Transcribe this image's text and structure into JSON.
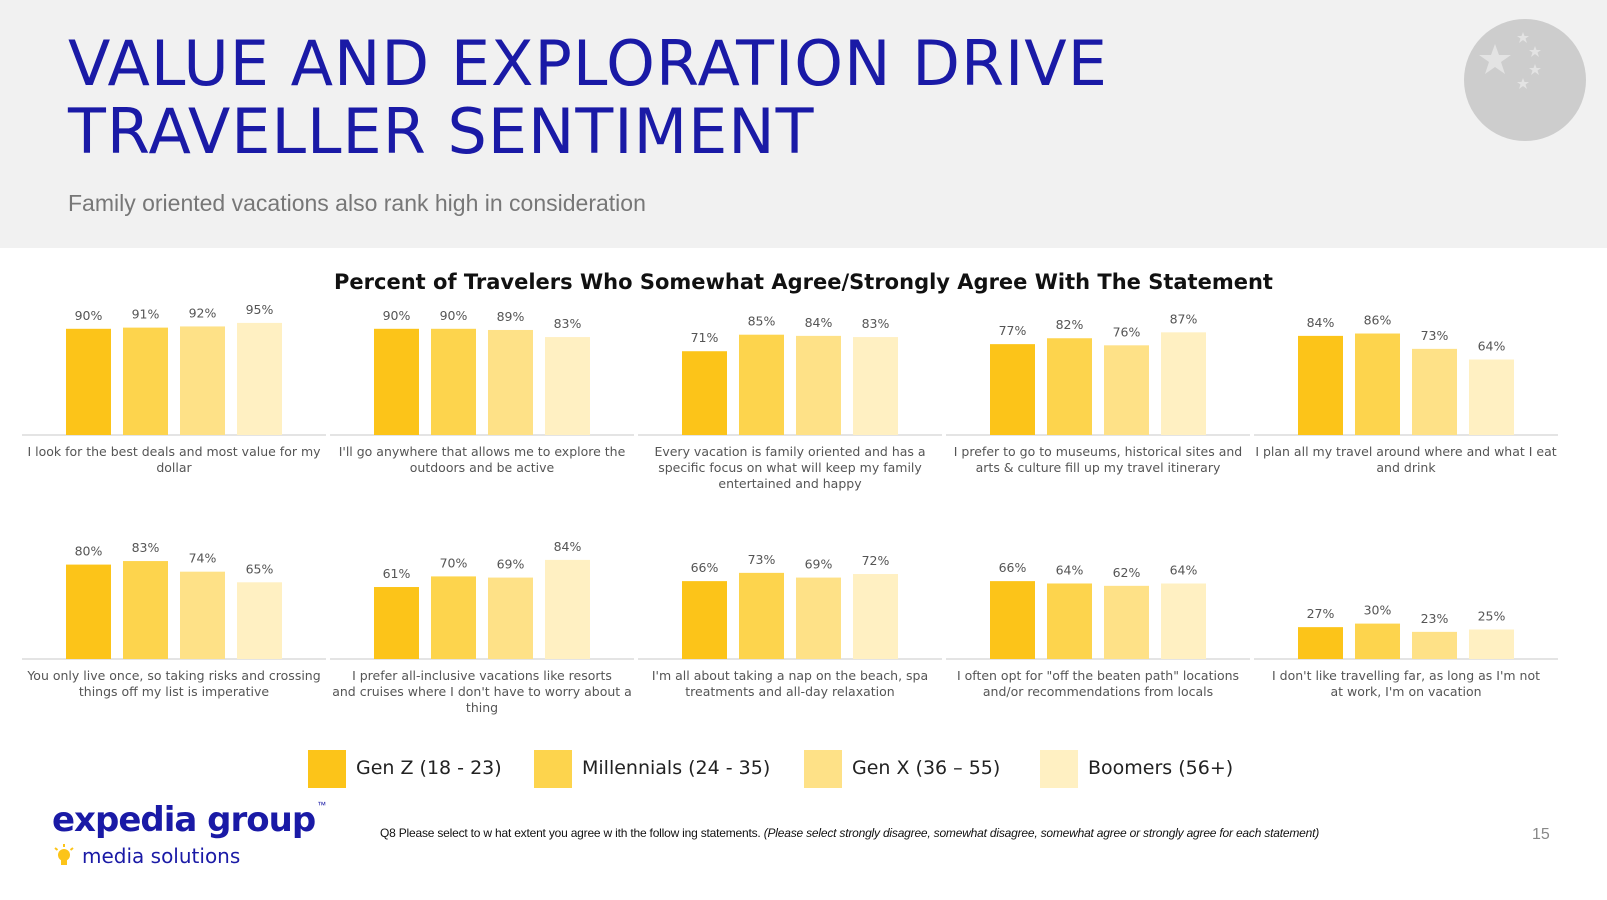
{
  "header": {
    "title_line1": "VALUE AND EXPLORATION DRIVE",
    "title_line2": "TRAVELLER SENTIMENT",
    "subtitle": "Family oriented vacations also rank high in consideration"
  },
  "colors": {
    "title": "#1a1aa6",
    "gen_z": "#fcc419",
    "millennials": "#fdd44d",
    "gen_x": "#fee187",
    "boomers": "#fff0c2",
    "axis": "#c8c8c8",
    "flag_circle": "#cdcdcd",
    "bulb": "#fcc419"
  },
  "chart_data": {
    "type": "bar",
    "title": "Percent of Travelers Who Somewhat Agree/Strongly Agree With The Statement",
    "series_names": [
      "Gen Z (18 - 23)",
      "Millennials (24 - 35)",
      "Gen X (36 – 55)",
      "Boomers (56+)"
    ],
    "value_suffix": "%",
    "ylim": [
      0,
      100
    ],
    "panels": [
      {
        "label": "I look for the best deals and most value for my dollar",
        "values": [
          90,
          91,
          92,
          95
        ]
      },
      {
        "label": "I'll go anywhere that allows me to explore the outdoors and be active",
        "values": [
          90,
          90,
          89,
          83
        ]
      },
      {
        "label": "Every vacation is family oriented and has a specific focus on what will keep my family entertained and happy",
        "values": [
          71,
          85,
          84,
          83
        ]
      },
      {
        "label": "I prefer to go to museums, historical sites and arts & culture fill up my travel itinerary",
        "values": [
          77,
          82,
          76,
          87
        ]
      },
      {
        "label": "I plan all my travel around where and what I eat and drink",
        "values": [
          84,
          86,
          73,
          64
        ]
      },
      {
        "label": "You only live once, so taking risks and crossing things off my list is imperative",
        "values": [
          80,
          83,
          74,
          65
        ]
      },
      {
        "label": "I prefer all-inclusive vacations like resorts and cruises where I don't have to worry about a thing",
        "values": [
          61,
          70,
          69,
          84
        ]
      },
      {
        "label": "I'm all about taking a nap on the beach, spa treatments and all-day relaxation",
        "values": [
          66,
          73,
          69,
          72
        ]
      },
      {
        "label": "I often opt for \"off the beaten path\" locations and/or recommendations from locals",
        "values": [
          66,
          64,
          62,
          64
        ]
      },
      {
        "label": "I don't like travelling far, as long as I'm not at work, I'm on vacation",
        "values": [
          27,
          30,
          23,
          25
        ]
      }
    ]
  },
  "legend": {
    "gen_z": "Gen Z (18 - 23)",
    "millennials": "Millennials (24 - 35)",
    "gen_x": "Gen X (36 – 55)",
    "boomers": "Boomers (56+)"
  },
  "footer": {
    "logo_main": "expedia group",
    "logo_tm": "™",
    "logo_sub": "media solutions",
    "footnote_prefix": "Q8 Please select to w hat extent you agree w ith the follow ing statements.",
    "footnote_italic": "(Please select strongly disagree, somewhat disagree, somewhat agree or strongly agree for each statement)",
    "page_number": "15"
  },
  "flag_icon": "china-flag-icon"
}
